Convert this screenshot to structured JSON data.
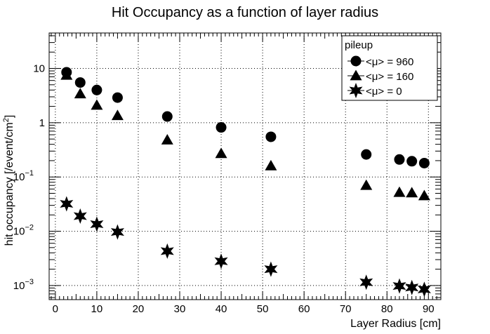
{
  "chart_data": {
    "type": "scatter",
    "title": "Hit Occupancy as a function of layer radius",
    "xlabel": "Layer Radius [cm]",
    "ylabel_main": "hit occupancy [/event/cm",
    "ylabel_sup": "2",
    "ylabel_end": "]",
    "x_axis": {
      "min": -1.5,
      "max": 93,
      "ticks": [
        0,
        10,
        20,
        30,
        40,
        50,
        60,
        70,
        80,
        90
      ]
    },
    "y_axis": {
      "scale": "log",
      "min": 0.00055,
      "max": 45,
      "ticks": [
        {
          "value": 0.001,
          "base": "10",
          "exp": "−3"
        },
        {
          "value": 0.01,
          "base": "10",
          "exp": "−2"
        },
        {
          "value": 0.1,
          "base": "10",
          "exp": "−1"
        },
        {
          "value": 1,
          "base": "1",
          "exp": ""
        },
        {
          "value": 10,
          "base": "10",
          "exp": ""
        }
      ]
    },
    "grid": true,
    "legend": {
      "title": "pileup",
      "position": "top-right",
      "entries": [
        {
          "label": "<μ> = 960",
          "marker": "circle"
        },
        {
          "label": "<μ> = 160",
          "marker": "triangle"
        },
        {
          "label": "<μ> = 0",
          "marker": "star"
        }
      ]
    },
    "series": [
      {
        "name": "<μ> = 960",
        "marker": "circle",
        "x": [
          2.7,
          6,
          10,
          15,
          27,
          40,
          52,
          75,
          83,
          86,
          89
        ],
        "y": [
          8.5,
          5.5,
          4.0,
          2.9,
          1.3,
          0.82,
          0.55,
          0.26,
          0.21,
          0.195,
          0.18
        ]
      },
      {
        "name": "<μ> = 160",
        "marker": "triangle",
        "x": [
          2.7,
          6,
          10,
          15,
          27,
          40,
          52,
          75,
          83,
          86,
          89
        ],
        "y": [
          7.5,
          3.4,
          2.1,
          1.35,
          0.48,
          0.27,
          0.16,
          0.07,
          0.052,
          0.051,
          0.045
        ]
      },
      {
        "name": "<μ> = 0",
        "marker": "star",
        "x": [
          2.7,
          6,
          10,
          15,
          27,
          40,
          52,
          75,
          83,
          86,
          89
        ],
        "y": [
          0.032,
          0.019,
          0.0135,
          0.0097,
          0.0043,
          0.0028,
          0.002,
          0.00115,
          0.00098,
          0.00092,
          0.00085
        ]
      }
    ]
  }
}
